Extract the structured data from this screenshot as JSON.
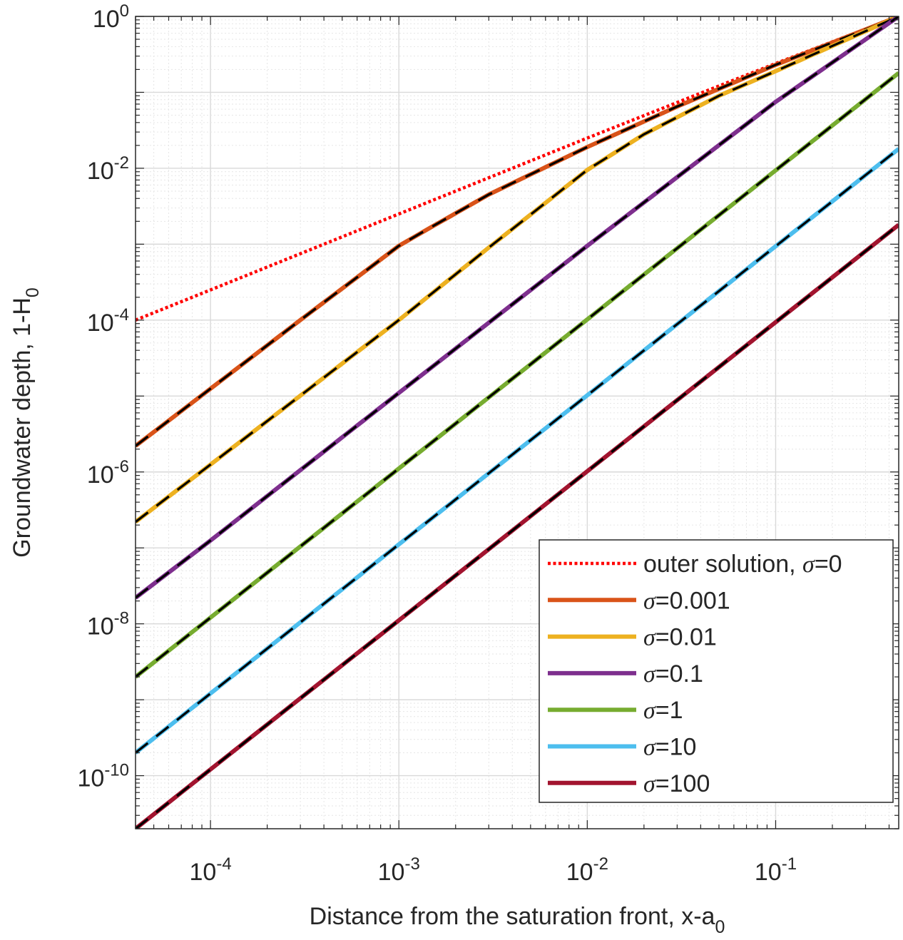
{
  "chart_data": {
    "type": "line",
    "x_scale": "log",
    "y_scale": "log",
    "xlim": [
      4e-05,
      0.45
    ],
    "ylim": [
      2e-11,
      1
    ],
    "grid": true,
    "minor_grid": true,
    "legend_position": "bottom-right",
    "xlabel": "Distance from the saturation front, x-a",
    "xlabel_sub": "0",
    "ylabel": "Groundwater depth, 1-H",
    "ylabel_sub": "0",
    "x_ticks": [
      {
        "value": 0.0001,
        "base": "10",
        "exp": "-4"
      },
      {
        "value": 0.001,
        "base": "10",
        "exp": "-3"
      },
      {
        "value": 0.01,
        "base": "10",
        "exp": "-2"
      },
      {
        "value": 0.1,
        "base": "10",
        "exp": "-1"
      }
    ],
    "y_ticks": [
      {
        "value": 1,
        "base": "10",
        "exp": "0"
      },
      {
        "value": 0.01,
        "base": "10",
        "exp": "-2"
      },
      {
        "value": 0.0001,
        "base": "10",
        "exp": "-4"
      },
      {
        "value": 1e-06,
        "base": "10",
        "exp": "-6"
      },
      {
        "value": 1e-08,
        "base": "10",
        "exp": "-8"
      },
      {
        "value": 1e-10,
        "base": "10",
        "exp": "-10"
      }
    ],
    "series": [
      {
        "name": "outer solution, σ=0",
        "style": "dotted",
        "color": "#FF0000",
        "x": [
          4e-05,
          0.0001,
          0.001,
          0.01,
          0.1,
          0.45
        ],
        "y": [
          0.0001,
          0.00025,
          0.0025,
          0.025,
          0.24,
          1.0
        ]
      },
      {
        "name": "σ=0.001",
        "style": "solid",
        "color": "#D95319",
        "x": [
          4e-05,
          0.0001,
          0.0003,
          0.001,
          0.0015,
          0.003,
          0.01,
          0.03,
          0.1,
          0.45
        ],
        "y": [
          2.2e-06,
          1.25e-05,
          0.0001,
          0.00095,
          0.0017,
          0.0045,
          0.019,
          0.065,
          0.23,
          1.0
        ]
      },
      {
        "name": "σ=0.01",
        "style": "solid",
        "color": "#EDB120",
        "x": [
          4e-05,
          0.0001,
          0.001,
          0.003,
          0.01,
          0.02,
          0.05,
          0.1,
          0.45
        ],
        "y": [
          2.2e-07,
          1.25e-06,
          0.0001,
          0.0009,
          0.0095,
          0.028,
          0.09,
          0.19,
          1.0
        ]
      },
      {
        "name": "σ=0.1",
        "style": "solid",
        "color": "#7E2F8E",
        "x": [
          4e-05,
          0.0001,
          0.001,
          0.01,
          0.1,
          0.45
        ],
        "y": [
          2.2e-08,
          1.25e-07,
          1.1e-05,
          0.00095,
          0.075,
          1.0
        ]
      },
      {
        "name": "σ=1",
        "style": "solid",
        "color": "#77AC30",
        "x": [
          4e-05,
          0.45
        ],
        "y": [
          2e-09,
          0.18
        ]
      },
      {
        "name": "σ=10",
        "style": "solid",
        "color": "#4DBEEE",
        "x": [
          4e-05,
          0.45
        ],
        "y": [
          2e-10,
          0.018
        ]
      },
      {
        "name": "σ=100",
        "style": "solid",
        "color": "#A2142F",
        "x": [
          4e-05,
          0.45
        ],
        "y": [
          2e-11,
          0.0018
        ]
      }
    ],
    "legend": [
      {
        "prefix": "outer solution, ",
        "sym": "σ",
        "suffix": "=0",
        "color": "#FF0000",
        "style": "dotted"
      },
      {
        "prefix": "",
        "sym": "σ",
        "suffix": "=0.001",
        "color": "#D95319",
        "style": "solid"
      },
      {
        "prefix": "",
        "sym": "σ",
        "suffix": "=0.01",
        "color": "#EDB120",
        "style": "solid"
      },
      {
        "prefix": "",
        "sym": "σ",
        "suffix": "=0.1",
        "color": "#7E2F8E",
        "style": "solid"
      },
      {
        "prefix": "",
        "sym": "σ",
        "suffix": "=1",
        "color": "#77AC30",
        "style": "solid"
      },
      {
        "prefix": "",
        "sym": "σ",
        "suffix": "=10",
        "color": "#4DBEEE",
        "style": "solid"
      },
      {
        "prefix": "",
        "sym": "σ",
        "suffix": "=100",
        "color": "#A2142F",
        "style": "solid"
      }
    ]
  }
}
